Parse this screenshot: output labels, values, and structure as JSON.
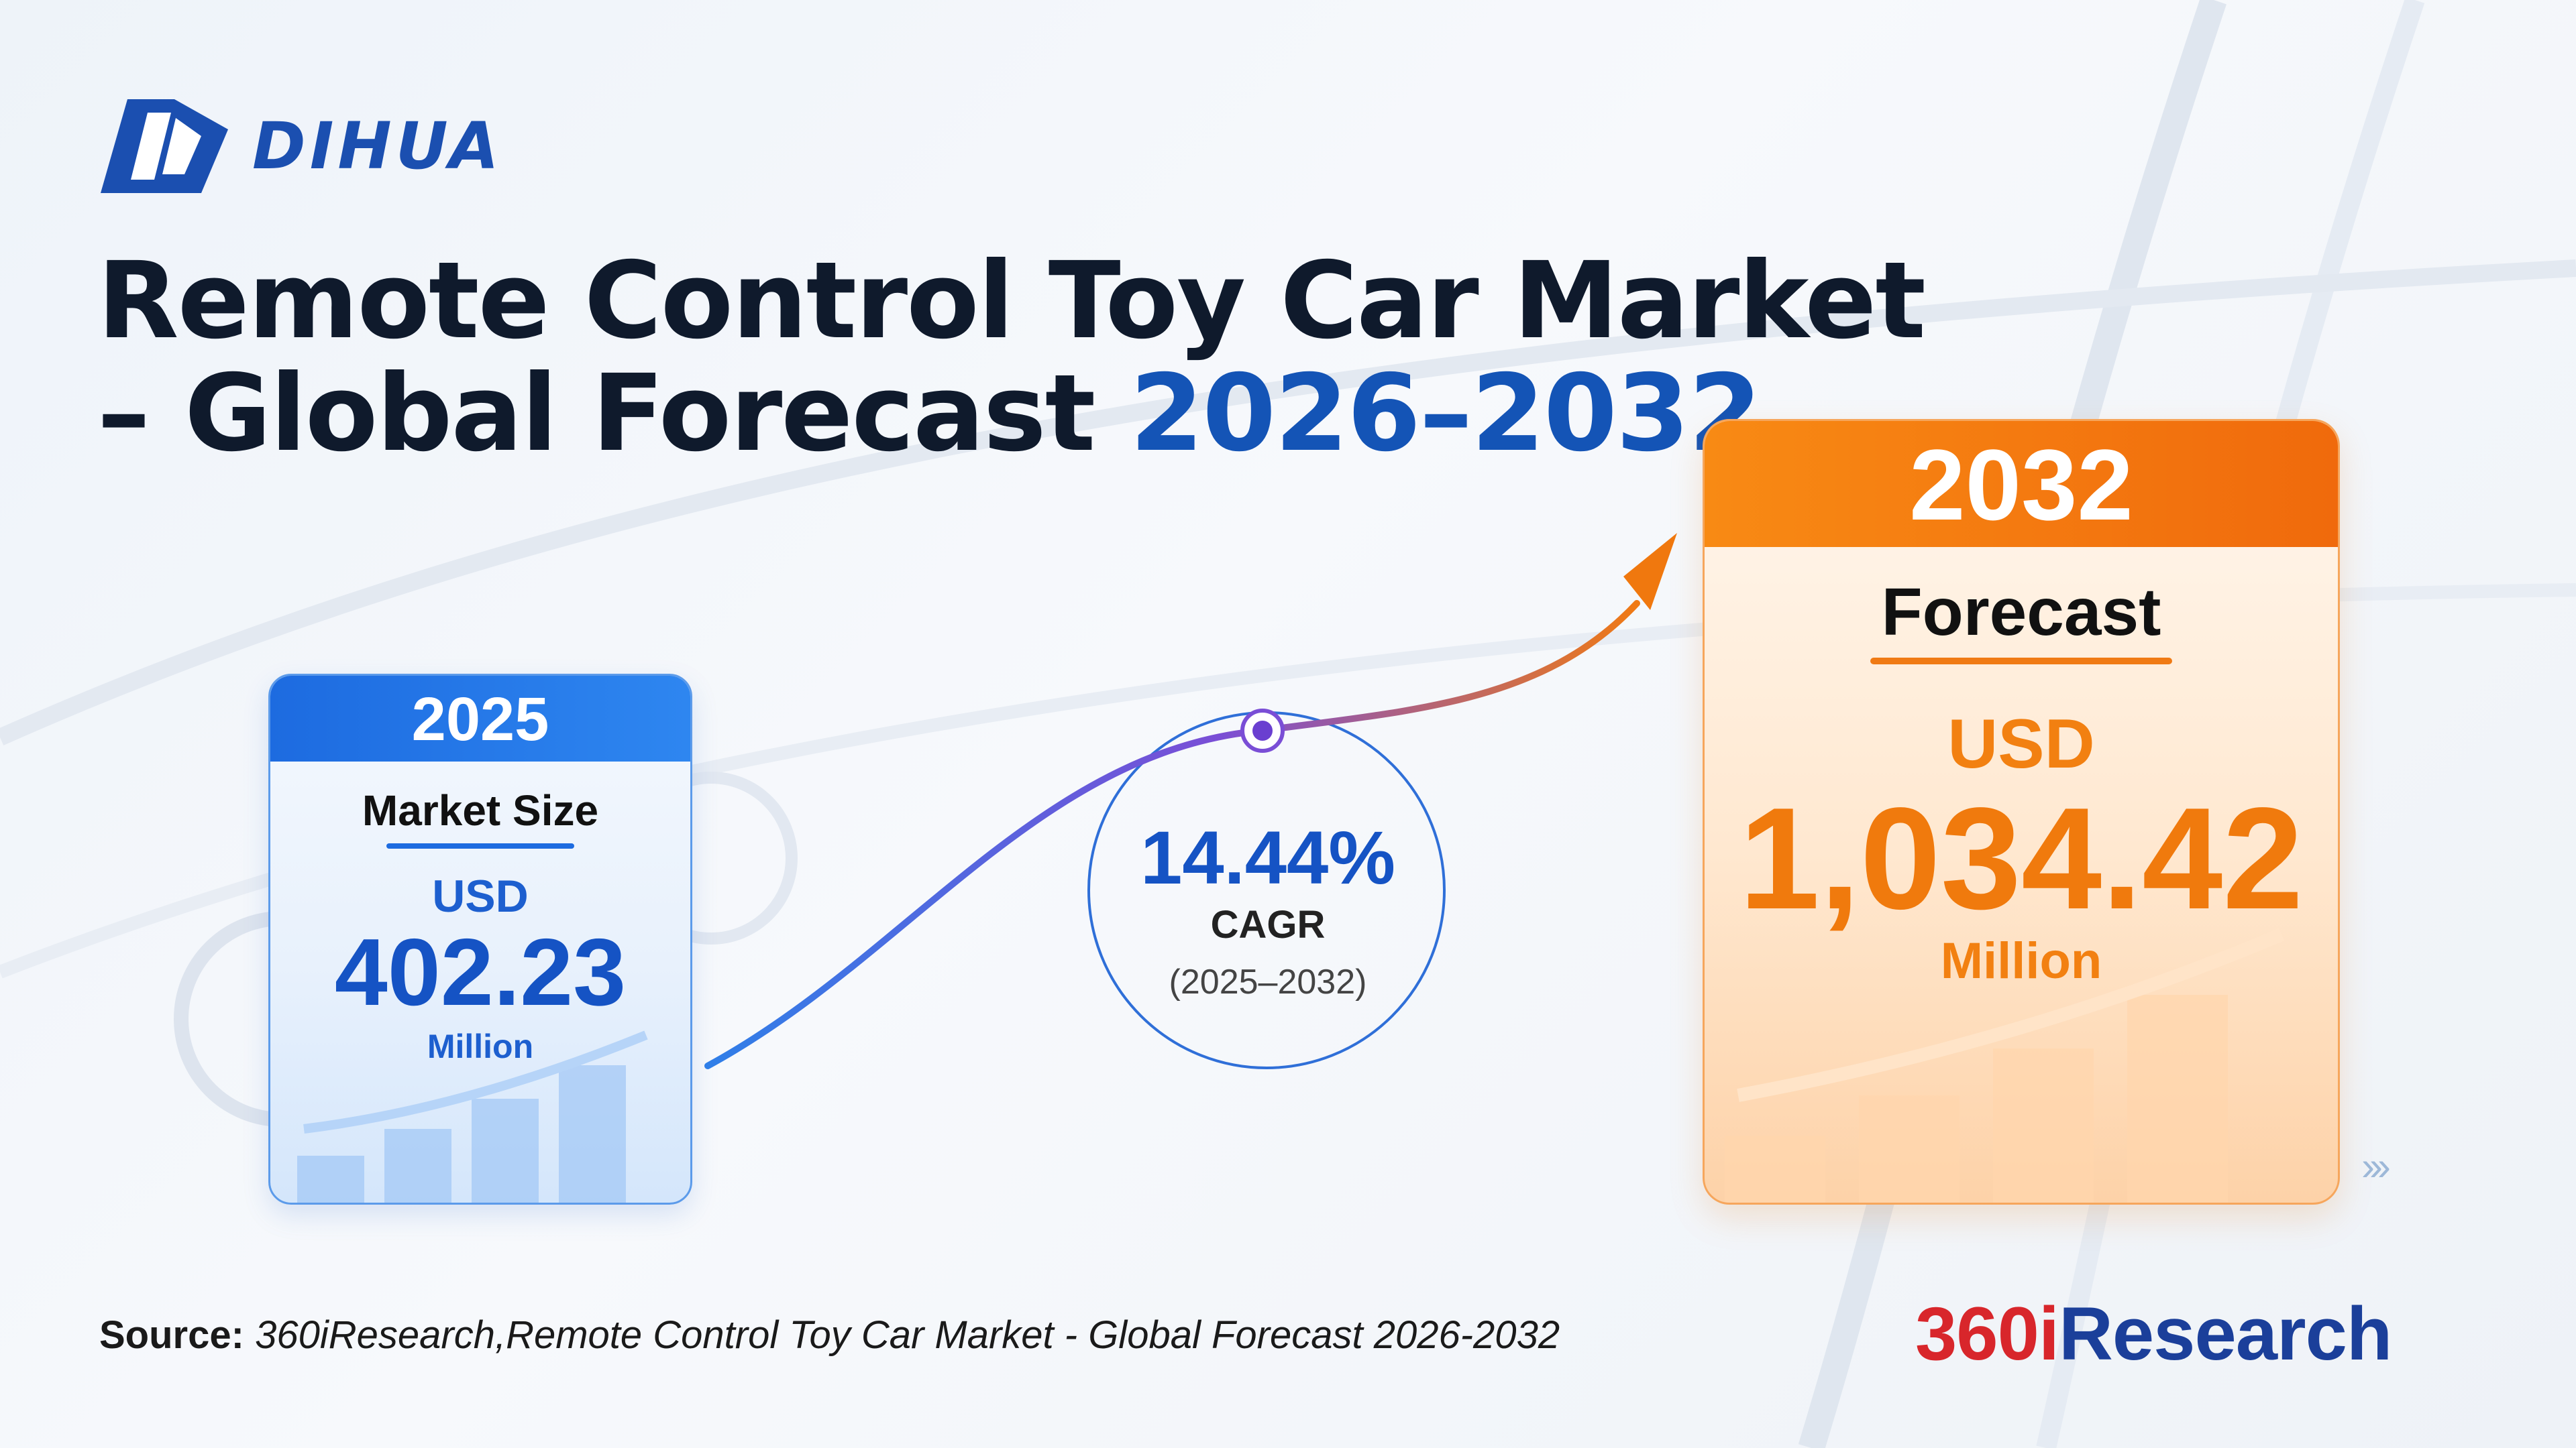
{
  "logo": {
    "icon": "dihua-logo-icon",
    "text": "DIHUA"
  },
  "title": {
    "line1": "Remote Control Toy Car Market",
    "line2_prefix": "– Global Forecast ",
    "line2_years": "2026–2032"
  },
  "card_2025": {
    "year": "2025",
    "label": "Market Size",
    "currency": "USD",
    "value": "402.23",
    "unit": "Million"
  },
  "cagr": {
    "value": "14.44%",
    "label": "CAGR",
    "period": "(2025–2032)"
  },
  "card_2032": {
    "year": "2032",
    "label": "Forecast",
    "currency": "USD",
    "value": "1,034.42",
    "unit": "Million"
  },
  "decor": {
    "chevrons": "›››"
  },
  "source": {
    "lead": "Source:",
    "text": " 360iResearch,Remote Control Toy Car Market - Global Forecast 2026-2032"
  },
  "brand": {
    "num": "360i",
    "rest": "Research"
  },
  "colors": {
    "blue_accent": "#1553c4",
    "orange_accent": "#f07a0d",
    "title_dark": "#0f1a2c"
  }
}
